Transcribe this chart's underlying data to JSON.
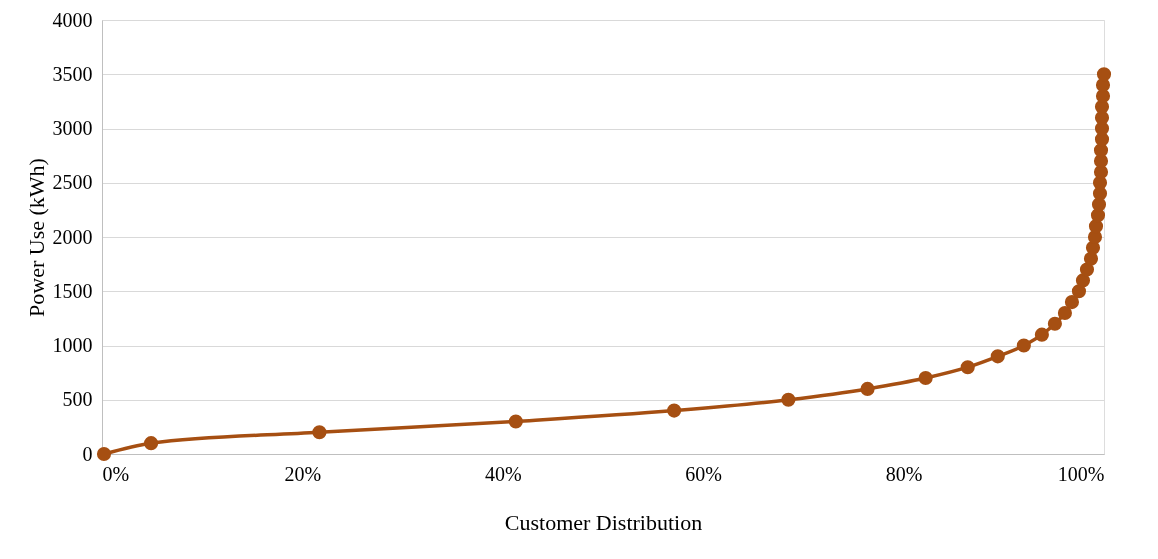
{
  "chart_data": {
    "type": "line",
    "xlabel": "Customer Distribution",
    "ylabel": "Power Use (kWh)",
    "series": [
      {
        "color": "#a64f12",
        "x": [
          0.2,
          4.9,
          21.7,
          41.3,
          57.1,
          68.5,
          76.4,
          82.2,
          86.4,
          89.4,
          92.0,
          93.8,
          95.1,
          96.1,
          96.8,
          97.5,
          97.9,
          98.3,
          98.7,
          98.9,
          99.1,
          99.2,
          99.4,
          99.5,
          99.6,
          99.6,
          99.7,
          99.7,
          99.7,
          99.8,
          99.8,
          99.8,
          99.8,
          99.9,
          99.9,
          100
        ],
        "values": [
          0,
          100,
          200,
          300,
          400,
          500,
          600,
          700,
          800,
          900,
          1000,
          1100,
          1200,
          1300,
          1400,
          1500,
          1600,
          1700,
          1800,
          1900,
          2000,
          2100,
          2200,
          2300,
          2400,
          2500,
          2600,
          2700,
          2800,
          2900,
          3000,
          3100,
          3200,
          3300,
          3400,
          3500
        ]
      }
    ],
    "xlim": [
      0,
      100
    ],
    "xticks": [
      {
        "value": 0,
        "label": "0%"
      },
      {
        "value": 20,
        "label": "20%"
      },
      {
        "value": 40,
        "label": "40%"
      },
      {
        "value": 60,
        "label": "60%"
      },
      {
        "value": 80,
        "label": "80%"
      },
      {
        "value": 100,
        "label": "100%"
      }
    ],
    "ylim": [
      0,
      4000
    ],
    "yticks": [
      0,
      500,
      1000,
      1500,
      2000,
      2500,
      3000,
      3500,
      4000
    ],
    "grid": "y",
    "marker": "circle",
    "line_style": "solid"
  }
}
